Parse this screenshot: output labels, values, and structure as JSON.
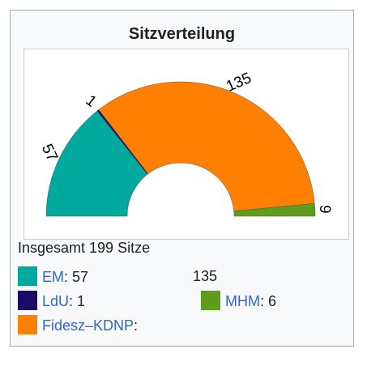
{
  "title": "Sitzverteilung",
  "total_text": "Insgesamt 199 Sitze",
  "chart_data": {
    "type": "pie",
    "variant": "parliament-semicircle",
    "total_seats": 199,
    "series": [
      {
        "name": "EM",
        "value": 57,
        "color": "#00a99d",
        "label": "57"
      },
      {
        "name": "LdU",
        "value": 1,
        "color": "#1c0b66",
        "label": "1"
      },
      {
        "name": "Fidesz–KDNP",
        "value": 135,
        "color": "#ff7f00",
        "label": "135"
      },
      {
        "name": "MHM",
        "value": 6,
        "color": "#5e9c1b",
        "label": "6"
      }
    ]
  },
  "legend": {
    "items": [
      {
        "name": "EM",
        "sep": ": ",
        "value": "57",
        "color": "#00a99d"
      },
      {
        "name": "LdU",
        "sep": ": ",
        "value": "1",
        "color": "#1c0b66"
      },
      {
        "name": "Fidesz–KDNP",
        "sep": ":",
        "value": "",
        "color": "#ff7f00"
      },
      {
        "name": "",
        "sep": "",
        "value": "135",
        "color": ""
      },
      {
        "name": "MHM",
        "sep": ": ",
        "value": "6",
        "color": "#5e9c1b"
      }
    ]
  }
}
